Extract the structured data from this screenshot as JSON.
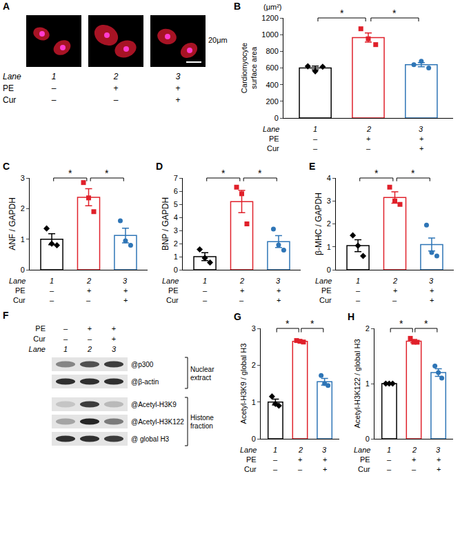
{
  "chart_data": [
    {
      "type": "bar",
      "panel": "B",
      "ylabel": "Cardiomyocyte surface area",
      "y_unit": "(μm²)",
      "categories": [
        "1",
        "2",
        "3"
      ],
      "lane_header": "Lane",
      "treatments": [
        {
          "label": "PE",
          "values": [
            "–",
            "+",
            "+"
          ]
        },
        {
          "label": "Cur",
          "values": [
            "–",
            "–",
            "+"
          ]
        }
      ],
      "values": [
        600,
        965,
        640
      ],
      "errors": [
        22,
        55,
        25
      ],
      "points": [
        [
          620,
          560,
          615
        ],
        [
          1070,
          950,
          880
        ],
        [
          640,
          680,
          600
        ]
      ],
      "colors": [
        "#000000",
        "#e0202a",
        "#2e75b6"
      ],
      "ylim": [
        0,
        1200
      ],
      "yticks": [
        0,
        200,
        400,
        600,
        800,
        1000,
        1200
      ],
      "grid": false,
      "significance": [
        {
          "pair": [
            "1",
            "2"
          ],
          "label": "*"
        },
        {
          "pair": [
            "2",
            "3"
          ],
          "label": "*"
        }
      ]
    },
    {
      "type": "bar",
      "panel": "C",
      "ylabel": "ANF / GAPDH",
      "categories": [
        "1",
        "2",
        "3"
      ],
      "lane_header": "Lane",
      "treatments": [
        {
          "label": "PE",
          "values": [
            "–",
            "+",
            "+"
          ]
        },
        {
          "label": "Cur",
          "values": [
            "–",
            "–",
            "+"
          ]
        }
      ],
      "values": [
        1.0,
        2.37,
        1.12
      ],
      "errors": [
        0.18,
        0.28,
        0.24
      ],
      "points": [
        [
          1.35,
          0.85,
          0.8
        ],
        [
          2.85,
          2.35,
          1.9
        ],
        [
          1.6,
          0.95,
          0.8
        ]
      ],
      "colors": [
        "#000000",
        "#e0202a",
        "#2e75b6"
      ],
      "ylim": [
        0,
        3
      ],
      "yticks": [
        0,
        1,
        2,
        3
      ],
      "grid": false,
      "significance": [
        {
          "pair": [
            "1",
            "2"
          ],
          "label": "*"
        },
        {
          "pair": [
            "2",
            "3"
          ],
          "label": "*"
        }
      ]
    },
    {
      "type": "bar",
      "panel": "D",
      "ylabel": "BNP / GAPDH",
      "categories": [
        "1",
        "2",
        "3"
      ],
      "lane_header": "Lane",
      "treatments": [
        {
          "label": "PE",
          "values": [
            "–",
            "+",
            "+"
          ]
        },
        {
          "label": "Cur",
          "values": [
            "–",
            "–",
            "+"
          ]
        }
      ],
      "values": [
        1.0,
        5.2,
        2.15
      ],
      "errors": [
        0.3,
        0.85,
        0.45
      ],
      "points": [
        [
          1.55,
          0.9,
          0.55
        ],
        [
          6.3,
          5.8,
          3.5
        ],
        [
          3.1,
          1.9,
          1.5
        ]
      ],
      "colors": [
        "#000000",
        "#e0202a",
        "#2e75b6"
      ],
      "ylim": [
        0,
        7
      ],
      "yticks": [
        0,
        1,
        2,
        3,
        4,
        5,
        6,
        7
      ],
      "grid": false,
      "significance": [
        {
          "pair": [
            "1",
            "2"
          ],
          "label": "*"
        },
        {
          "pair": [
            "2",
            "3"
          ],
          "label": "*"
        }
      ]
    },
    {
      "type": "bar",
      "panel": "E",
      "ylabel": "β-MHC / GAPDH",
      "categories": [
        "1",
        "2",
        "3"
      ],
      "lane_header": "Lane",
      "treatments": [
        {
          "label": "PE",
          "values": [
            "–",
            "+",
            "+"
          ]
        },
        {
          "label": "Cur",
          "values": [
            "–",
            "–",
            "+"
          ]
        }
      ],
      "values": [
        1.05,
        3.15,
        1.1
      ],
      "errors": [
        0.26,
        0.25,
        0.28
      ],
      "points": [
        [
          1.5,
          1.05,
          0.6
        ],
        [
          3.6,
          3.0,
          2.85
        ],
        [
          1.95,
          0.75,
          0.6
        ]
      ],
      "colors": [
        "#000000",
        "#e0202a",
        "#2e75b6"
      ],
      "ylim": [
        0,
        4
      ],
      "yticks": [
        0,
        1,
        2,
        3,
        4
      ],
      "grid": false,
      "significance": [
        {
          "pair": [
            "1",
            "2"
          ],
          "label": "*"
        },
        {
          "pair": [
            "2",
            "3"
          ],
          "label": "*"
        }
      ]
    },
    {
      "type": "bar",
      "panel": "G",
      "ylabel": "Acetyl-H3K9 / global H3",
      "categories": [
        "1",
        "2",
        "3"
      ],
      "lane_header": "Lane",
      "treatments": [
        {
          "label": "PE",
          "values": [
            "–",
            "+",
            "+"
          ]
        },
        {
          "label": "Cur",
          "values": [
            "–",
            "–",
            "+"
          ]
        }
      ],
      "values": [
        1.0,
        2.65,
        1.55
      ],
      "errors": [
        0.08,
        0.02,
        0.09
      ],
      "points": [
        [
          1.15,
          0.95,
          0.9
        ],
        [
          2.67,
          2.65,
          2.63
        ],
        [
          1.72,
          1.5,
          1.45
        ]
      ],
      "colors": [
        "#000000",
        "#e0202a",
        "#2e75b6"
      ],
      "ylim": [
        0,
        3
      ],
      "yticks": [
        0,
        1,
        2,
        3
      ],
      "grid": false,
      "significance": [
        {
          "pair": [
            "1",
            "2"
          ],
          "label": "*"
        },
        {
          "pair": [
            "2",
            "3"
          ],
          "label": "*"
        }
      ]
    },
    {
      "type": "bar",
      "panel": "H",
      "ylabel": "Acetyl-H3K122 / global H3",
      "categories": [
        "1",
        "2",
        "3"
      ],
      "lane_header": "Lane",
      "treatments": [
        {
          "label": "PE",
          "values": [
            "–",
            "+",
            "+"
          ]
        },
        {
          "label": "Cur",
          "values": [
            "–",
            "–",
            "+"
          ]
        }
      ],
      "values": [
        1.0,
        1.77,
        1.2
      ],
      "errors": [
        0.01,
        0.03,
        0.07
      ],
      "points": [
        [
          1.0,
          1.0,
          1.0
        ],
        [
          1.82,
          1.75,
          1.75
        ],
        [
          1.32,
          1.2,
          1.1
        ]
      ],
      "colors": [
        "#000000",
        "#e0202a",
        "#2e75b6"
      ],
      "ylim": [
        0,
        2
      ],
      "yticks": [
        0,
        1,
        2
      ],
      "grid": false,
      "significance": [
        {
          "pair": [
            "1",
            "2"
          ],
          "label": "*"
        },
        {
          "pair": [
            "2",
            "3"
          ],
          "label": "*"
        }
      ]
    }
  ],
  "panel_A": {
    "letter": "A",
    "scale_bar": "20μm",
    "categories": [
      "1",
      "2",
      "3"
    ],
    "lane_header": "Lane",
    "treatments": [
      {
        "label": "PE",
        "values": [
          "–",
          "+",
          "+"
        ]
      },
      {
        "label": "Cur",
        "values": [
          "–",
          "–",
          "+"
        ]
      }
    ]
  },
  "panel_F": {
    "letter": "F",
    "categories": [
      "1",
      "2",
      "3"
    ],
    "lane_header": "Lane",
    "treatments": [
      {
        "label": "PE",
        "values": [
          "–",
          "+",
          "+"
        ]
      },
      {
        "label": "Cur",
        "values": [
          "–",
          "–",
          "+"
        ]
      }
    ],
    "blots": [
      {
        "label": "@p300",
        "group": "Nuclear extract"
      },
      {
        "label": "@β-actin",
        "group": "Nuclear extract"
      },
      {
        "label": "@Acetyl-H3K9",
        "group": "Histone fraction"
      },
      {
        "label": "@Acetyl-H3K122",
        "group": "Histone fraction"
      },
      {
        "label": "@ global H3",
        "group": "Histone fraction"
      }
    ],
    "groups": [
      "Nuclear extract",
      "Histone fraction"
    ]
  }
}
